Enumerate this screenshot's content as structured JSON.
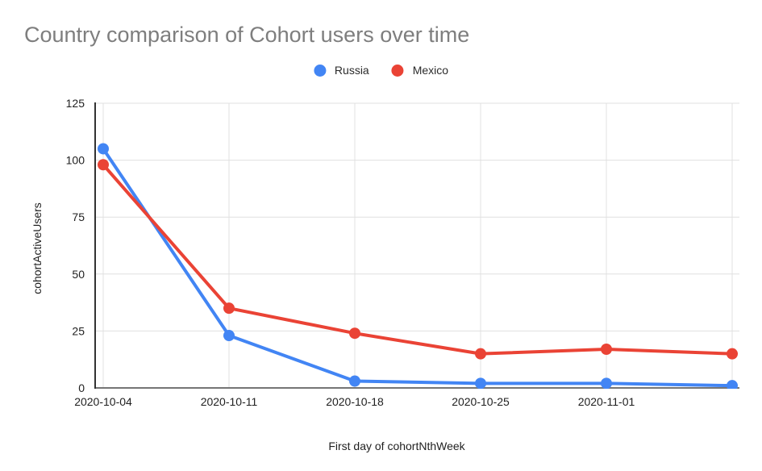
{
  "header": {
    "title": "Country comparison of Cohort users over time",
    "title_color": "#7e7e7e"
  },
  "legend": {
    "items": [
      {
        "label": "Russia",
        "color": "#4285F4"
      },
      {
        "label": "Mexico",
        "color": "#EA4335"
      }
    ]
  },
  "chart_data": {
    "type": "line",
    "title": "Country comparison of Cohort users over time",
    "xlabel": "First day of cohortNthWeek",
    "ylabel": "cohortActiveUsers",
    "x_tick_labels": [
      "2020-10-04",
      "2020-10-11",
      "2020-10-18",
      "2020-10-25",
      "2020-11-01",
      ""
    ],
    "num_points": 6,
    "y_ticks": [
      0,
      25,
      50,
      75,
      100,
      125
    ],
    "ylim": [
      0,
      125
    ],
    "grid": true,
    "legend_position": "top-center",
    "series": [
      {
        "name": "Russia",
        "color": "#4285F4",
        "values": [
          105,
          23,
          3,
          2,
          2,
          1
        ]
      },
      {
        "name": "Mexico",
        "color": "#EA4335",
        "values": [
          98,
          35,
          24,
          15,
          17,
          15
        ]
      }
    ],
    "style": {
      "gridline_color": "#e0e0e0",
      "y_axis_line_color": "#333333",
      "x_baseline_color": "#757575",
      "tick_text_color": "#1f1f1f",
      "line_width": 4,
      "point_radius": 7
    }
  }
}
